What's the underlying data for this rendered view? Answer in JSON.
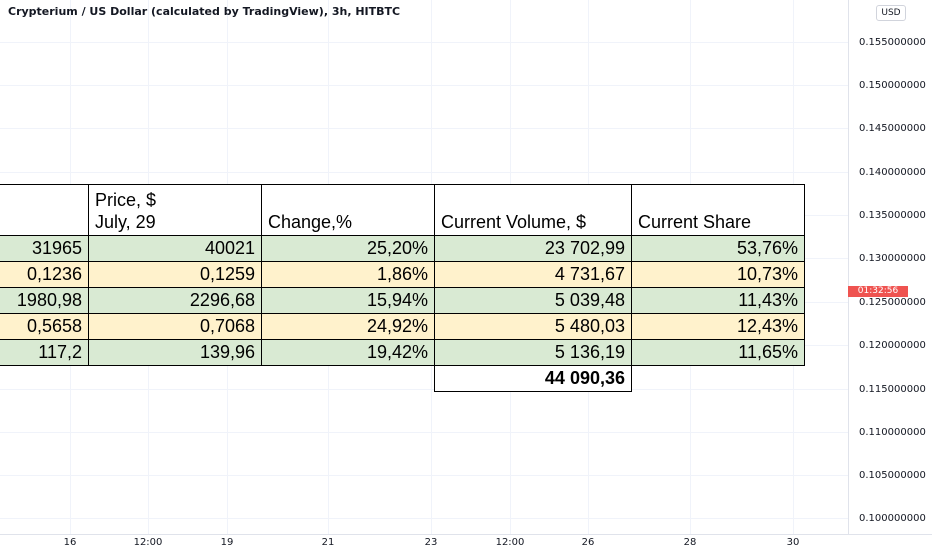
{
  "chart": {
    "title": "Crypterium / US Dollar (calculated by TradingView), 3h, HITBTC",
    "currency": "USD",
    "countdown": "01:32:56",
    "price_labels": [
      "0.155000000",
      "0.150000000",
      "0.145000000",
      "0.140000000",
      "0.135000000",
      "0.130000000",
      "0.125000000",
      "0.120000000",
      "0.115000000",
      "0.110000000",
      "0.105000000",
      "0.100000000"
    ],
    "time_labels": [
      "16",
      "12:00",
      "19",
      "21",
      "23",
      "12:00",
      "26",
      "28",
      "30"
    ]
  },
  "table": {
    "headers": {
      "col1": "",
      "col2_line1": "Price, $",
      "col2_line2": "July, 29",
      "col3": "Change,%",
      "col4": "Current Volume, $",
      "col5": "Current Share"
    },
    "rows": [
      {
        "c1": "31965",
        "c2": "40021",
        "c3": "25,20%",
        "c4": "23 702,99",
        "c5": "53,76%",
        "style": "green"
      },
      {
        "c1": "0,1236",
        "c2": "0,1259",
        "c3": "1,86%",
        "c4": "4 731,67",
        "c5": "10,73%",
        "style": "yellow"
      },
      {
        "c1": "1980,98",
        "c2": "2296,68",
        "c3": "15,94%",
        "c4": "5 039,48",
        "c5": "11,43%",
        "style": "green"
      },
      {
        "c1": "0,5658",
        "c2": "0,7068",
        "c3": "24,92%",
        "c4": "5 480,03",
        "c5": "12,43%",
        "style": "yellow"
      },
      {
        "c1": "117,2",
        "c2": "139,96",
        "c3": "19,42%",
        "c4": "5 136,19",
        "c5": "11,65%",
        "style": "green"
      }
    ],
    "total": "44 090,36"
  },
  "colors": {
    "green_row": "#d9ead3",
    "yellow_row": "#fff2cc",
    "countdown_badge": "#ef5350"
  }
}
